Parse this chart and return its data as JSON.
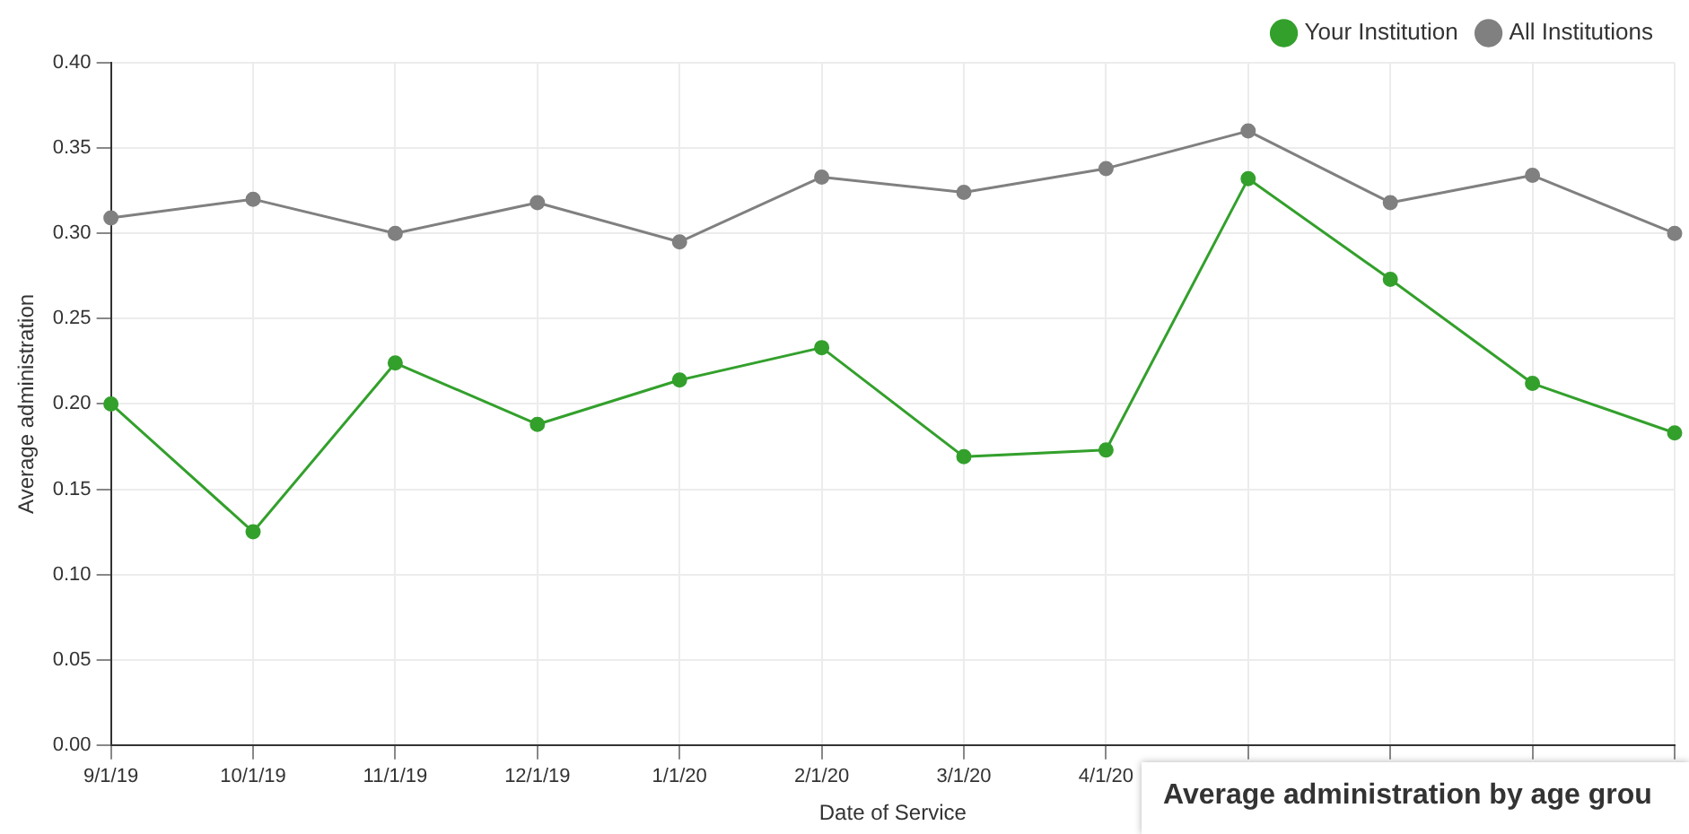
{
  "chart_data": {
    "type": "line",
    "xlabel": "Date of Service",
    "ylabel": "Average administration",
    "categories": [
      "9/1/19",
      "10/1/19",
      "11/1/19",
      "12/1/19",
      "1/1/20",
      "2/1/20",
      "3/1/20",
      "4/1/20",
      null,
      null,
      null,
      null
    ],
    "series": [
      {
        "name": "Your Institution",
        "color": "#33a02c",
        "values": [
          0.2,
          0.125,
          0.224,
          0.188,
          0.214,
          0.233,
          0.169,
          0.173,
          0.332,
          0.273,
          0.212,
          0.183
        ]
      },
      {
        "name": "All Institutions",
        "color": "#808080",
        "values": [
          0.309,
          0.32,
          0.3,
          0.318,
          0.295,
          0.333,
          0.324,
          0.338,
          0.36,
          0.318,
          0.334,
          0.3
        ]
      }
    ],
    "ylim": [
      0,
      0.4
    ],
    "yticks": [
      {
        "value": 0,
        "label": "0.00"
      },
      {
        "value": 0.05,
        "label": "0.05"
      },
      {
        "value": 0.1,
        "label": "0.10"
      },
      {
        "value": 0.15,
        "label": "0.15"
      },
      {
        "value": 0.2,
        "label": "0.20"
      },
      {
        "value": 0.25,
        "label": "0.25"
      },
      {
        "value": 0.3,
        "label": "0.30"
      },
      {
        "value": 0.35,
        "label": "0.35"
      },
      {
        "value": 0.4,
        "label": "0.40"
      }
    ],
    "grid": true,
    "legend": "top right",
    "marker": "circle",
    "line_style": "solid",
    "annotations": [
      "Average administration by age grou"
    ]
  }
}
